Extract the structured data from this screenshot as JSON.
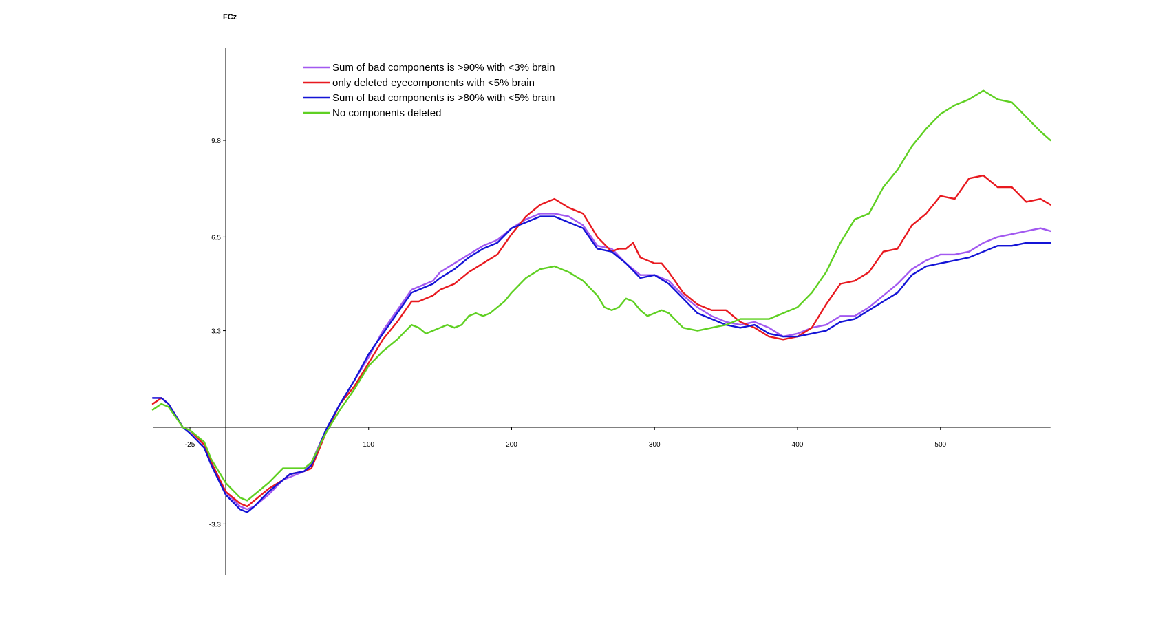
{
  "chart_data": {
    "type": "line",
    "title": "FCz",
    "xlabel": "",
    "ylabel": "",
    "xlim": [
      -51,
      577
    ],
    "ylim": [
      -5,
      13
    ],
    "x_ticks": [
      -25,
      100,
      200,
      300,
      400,
      500
    ],
    "x_tick_labels": [
      "-25",
      "100",
      "200",
      "300",
      "400",
      "500"
    ],
    "y_ticks": [
      9.8,
      6.5,
      3.3,
      -3.3
    ],
    "y_tick_labels": [
      "9.8",
      "6.5",
      "3.3",
      "-3.3"
    ],
    "grid": false,
    "legend_position": "top-left",
    "series": [
      {
        "name": "Sum of bad components is >90% with <3% brain",
        "color": "#a259f0",
        "x": [
          -51,
          -45,
          -40,
          -30,
          -25,
          -15,
          -10,
          0,
          10,
          15,
          20,
          30,
          40,
          45,
          55,
          60,
          70,
          80,
          90,
          100,
          110,
          120,
          130,
          135,
          145,
          150,
          160,
          170,
          180,
          190,
          200,
          210,
          220,
          230,
          240,
          250,
          260,
          270,
          280,
          290,
          300,
          310,
          320,
          330,
          340,
          350,
          360,
          370,
          380,
          390,
          400,
          410,
          420,
          430,
          440,
          450,
          460,
          470,
          480,
          490,
          500,
          510,
          520,
          530,
          540,
          550,
          560,
          570,
          577
        ],
        "y": [
          1.0,
          1.0,
          0.8,
          0.0,
          -0.1,
          -0.6,
          -1.2,
          -2.2,
          -2.7,
          -2.8,
          -2.7,
          -2.3,
          -1.8,
          -1.7,
          -1.5,
          -1.2,
          -0.1,
          0.8,
          1.6,
          2.4,
          3.3,
          4.0,
          4.7,
          4.8,
          5.0,
          5.3,
          5.6,
          5.9,
          6.2,
          6.4,
          6.8,
          7.1,
          7.3,
          7.3,
          7.2,
          6.9,
          6.2,
          6.1,
          5.6,
          5.2,
          5.2,
          5.0,
          4.5,
          4.1,
          3.8,
          3.6,
          3.5,
          3.6,
          3.4,
          3.1,
          3.2,
          3.4,
          3.5,
          3.8,
          3.8,
          4.1,
          4.5,
          4.9,
          5.4,
          5.7,
          5.9,
          5.9,
          6.0,
          6.3,
          6.5,
          6.6,
          6.7,
          6.8,
          6.7
        ]
      },
      {
        "name": "only deleted eyecomponents with <5% brain",
        "color": "#e8191f",
        "x": [
          -51,
          -45,
          -40,
          -30,
          -25,
          -15,
          -10,
          0,
          10,
          15,
          20,
          30,
          40,
          45,
          55,
          60,
          70,
          80,
          90,
          100,
          110,
          120,
          130,
          135,
          145,
          150,
          160,
          170,
          180,
          190,
          200,
          210,
          220,
          230,
          240,
          250,
          260,
          270,
          275,
          280,
          285,
          290,
          300,
          305,
          310,
          320,
          330,
          340,
          350,
          360,
          370,
          380,
          390,
          400,
          410,
          420,
          430,
          440,
          450,
          460,
          470,
          480,
          490,
          500,
          510,
          520,
          530,
          540,
          550,
          560,
          570,
          577
        ],
        "y": [
          0.8,
          1.0,
          0.8,
          0.0,
          -0.1,
          -0.6,
          -1.2,
          -2.2,
          -2.6,
          -2.7,
          -2.5,
          -2.1,
          -1.8,
          -1.6,
          -1.5,
          -1.4,
          -0.2,
          0.8,
          1.4,
          2.2,
          3.0,
          3.6,
          4.3,
          4.3,
          4.5,
          4.7,
          4.9,
          5.3,
          5.6,
          5.9,
          6.6,
          7.2,
          7.6,
          7.8,
          7.5,
          7.3,
          6.5,
          6.0,
          6.1,
          6.1,
          6.3,
          5.8,
          5.6,
          5.6,
          5.3,
          4.6,
          4.2,
          4.0,
          4.0,
          3.6,
          3.4,
          3.1,
          3.0,
          3.1,
          3.4,
          4.2,
          4.9,
          5.0,
          5.3,
          6.0,
          6.1,
          6.9,
          7.3,
          7.9,
          7.8,
          8.5,
          8.6,
          8.2,
          8.2,
          7.7,
          7.8,
          7.6
        ]
      },
      {
        "name": "Sum of bad components is >80% with <5% brain",
        "color": "#1414d6",
        "x": [
          -51,
          -45,
          -40,
          -30,
          -25,
          -15,
          -10,
          0,
          10,
          15,
          20,
          30,
          40,
          45,
          55,
          60,
          70,
          80,
          90,
          100,
          110,
          120,
          130,
          135,
          145,
          150,
          160,
          170,
          180,
          190,
          200,
          210,
          220,
          230,
          240,
          250,
          260,
          270,
          280,
          290,
          300,
          310,
          320,
          330,
          340,
          350,
          360,
          370,
          380,
          390,
          400,
          410,
          420,
          430,
          440,
          450,
          460,
          470,
          480,
          490,
          500,
          510,
          520,
          530,
          540,
          550,
          560,
          570,
          577
        ],
        "y": [
          1.0,
          1.0,
          0.8,
          0.0,
          -0.2,
          -0.7,
          -1.3,
          -2.3,
          -2.8,
          -2.9,
          -2.7,
          -2.2,
          -1.8,
          -1.6,
          -1.5,
          -1.3,
          -0.1,
          0.8,
          1.6,
          2.5,
          3.2,
          3.9,
          4.6,
          4.7,
          4.9,
          5.1,
          5.4,
          5.8,
          6.1,
          6.3,
          6.8,
          7.0,
          7.2,
          7.2,
          7.0,
          6.8,
          6.1,
          6.0,
          5.6,
          5.1,
          5.2,
          4.9,
          4.4,
          3.9,
          3.7,
          3.5,
          3.4,
          3.5,
          3.2,
          3.1,
          3.1,
          3.2,
          3.3,
          3.6,
          3.7,
          4.0,
          4.3,
          4.6,
          5.2,
          5.5,
          5.6,
          5.7,
          5.8,
          6.0,
          6.2,
          6.2,
          6.3,
          6.3,
          6.3
        ]
      },
      {
        "name": "No components deleted",
        "color": "#5fd022",
        "x": [
          -51,
          -45,
          -40,
          -30,
          -25,
          -15,
          -10,
          0,
          10,
          15,
          20,
          30,
          40,
          45,
          55,
          60,
          70,
          80,
          90,
          100,
          110,
          120,
          130,
          135,
          140,
          145,
          150,
          155,
          160,
          165,
          170,
          175,
          180,
          185,
          190,
          195,
          200,
          210,
          220,
          230,
          240,
          250,
          260,
          265,
          270,
          275,
          280,
          285,
          290,
          295,
          300,
          305,
          310,
          320,
          330,
          340,
          350,
          360,
          370,
          380,
          390,
          400,
          410,
          420,
          430,
          440,
          450,
          460,
          470,
          480,
          490,
          500,
          510,
          520,
          530,
          540,
          550,
          560,
          570,
          577
        ],
        "y": [
          0.6,
          0.8,
          0.7,
          0.0,
          -0.1,
          -0.5,
          -1.1,
          -1.9,
          -2.4,
          -2.5,
          -2.3,
          -1.9,
          -1.4,
          -1.4,
          -1.4,
          -1.2,
          -0.2,
          0.6,
          1.3,
          2.1,
          2.6,
          3.0,
          3.5,
          3.4,
          3.2,
          3.3,
          3.4,
          3.5,
          3.4,
          3.5,
          3.8,
          3.9,
          3.8,
          3.9,
          4.1,
          4.3,
          4.6,
          5.1,
          5.4,
          5.5,
          5.3,
          5.0,
          4.5,
          4.1,
          4.0,
          4.1,
          4.4,
          4.3,
          4.0,
          3.8,
          3.9,
          4.0,
          3.9,
          3.4,
          3.3,
          3.4,
          3.5,
          3.7,
          3.7,
          3.7,
          3.9,
          4.1,
          4.6,
          5.3,
          6.3,
          7.1,
          7.3,
          8.2,
          8.8,
          9.6,
          10.2,
          10.7,
          11.0,
          11.2,
          11.5,
          11.2,
          11.1,
          10.6,
          10.1,
          9.8
        ]
      }
    ]
  }
}
